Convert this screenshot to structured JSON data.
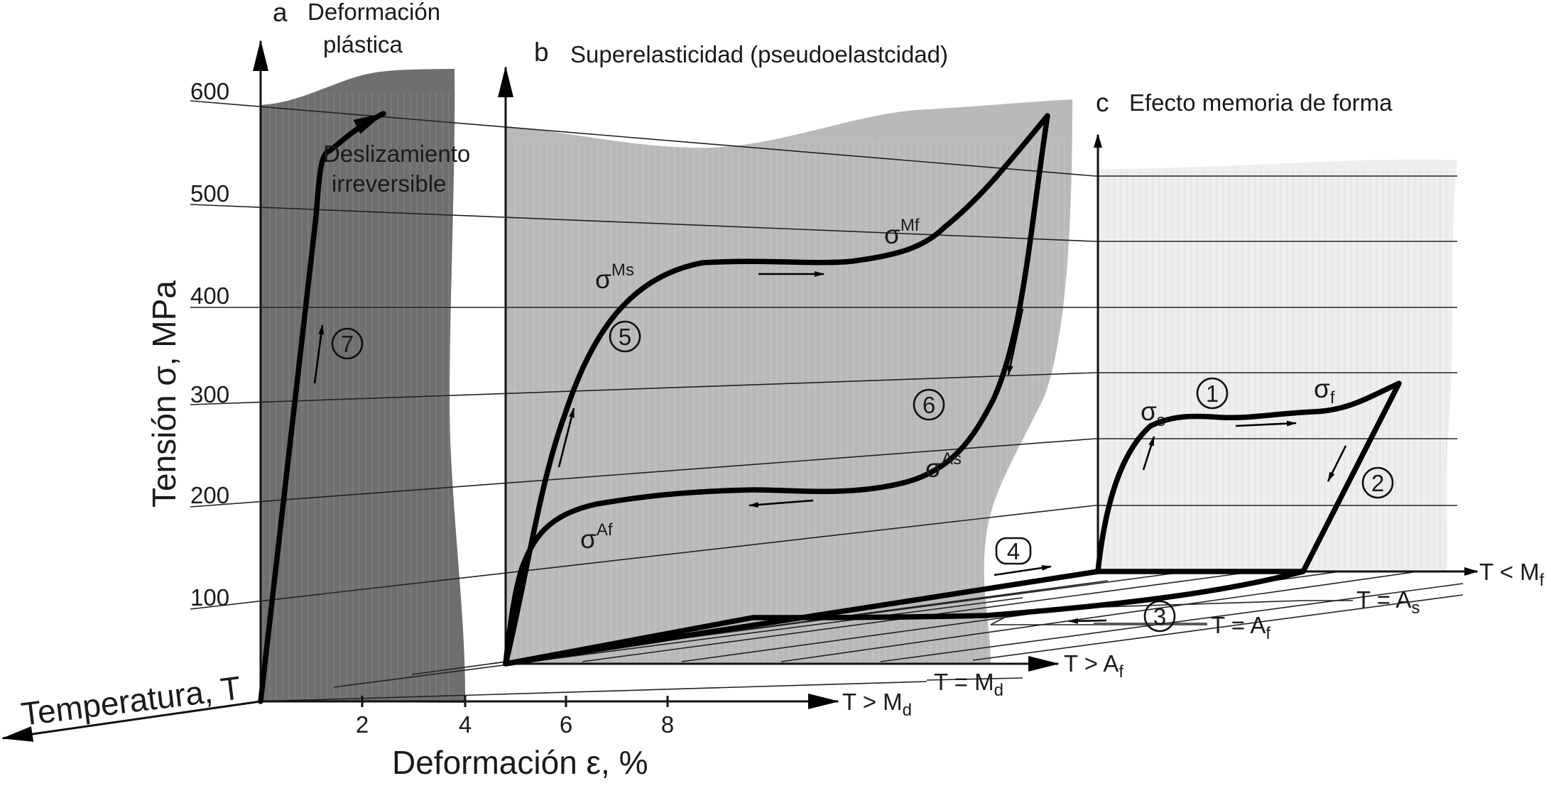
{
  "panels": {
    "a_letter": "a",
    "a_title_line1": "Deformación",
    "a_title_line2": "plástica",
    "b_letter": "b",
    "b_title": "Superelasticidad (pseudoelastcidad)",
    "c_letter": "c",
    "c_title": "Efecto memoria de forma"
  },
  "y_axis": {
    "label": "Tensión σ, MPa",
    "ticks": [
      "100",
      "200",
      "300",
      "400",
      "500",
      "600"
    ]
  },
  "x_axis": {
    "label": "Deformación ε, %",
    "ticks": [
      "2",
      "4",
      "6",
      "8"
    ]
  },
  "t_axis": {
    "label": "Temperatura, T"
  },
  "temperature_labels": {
    "t_gt_md_pre": "T > M",
    "t_gt_md_sub": "d",
    "t_eq_md_pre": "T = M",
    "t_eq_md_sub": "d",
    "t_gt_af_pre": "T > A",
    "t_gt_af_sub": "f",
    "t_eq_af_pre": "T = A",
    "t_eq_af_sub": "f",
    "t_eq_as_pre": "T = A",
    "t_eq_as_sub": "s",
    "t_lt_mf_pre": "T < M",
    "t_lt_mf_sub": "f"
  },
  "annotations": {
    "slip_line1": "Deslizamiento",
    "slip_line2": "irreversible",
    "sigma": "σ",
    "sup_ms": "Ms",
    "sup_mf": "Mf",
    "sup_as": "As",
    "sup_af": "Af",
    "sub_s": "s",
    "sub_f": "f"
  },
  "steps": [
    "1",
    "2",
    "3",
    "4",
    "5",
    "6",
    "7"
  ],
  "colors": {
    "panel_a_fill": "#6f6f6f",
    "panel_b_fill": "#b9b9b9",
    "panel_c_fill": "#eeeeee",
    "curve": "#000000"
  }
}
